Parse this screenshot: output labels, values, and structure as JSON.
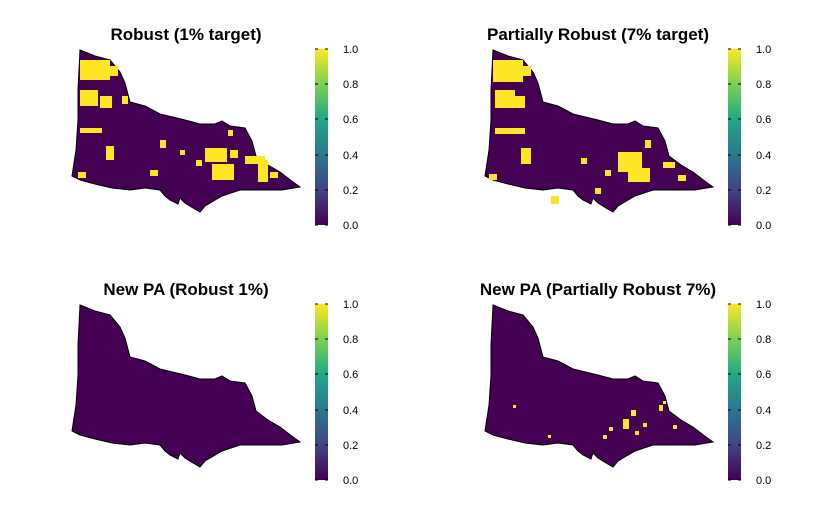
{
  "panels": [
    {
      "title": "Robust (1% target)",
      "scale_max": "1.0",
      "selection": "robust_1"
    },
    {
      "title": "Partially Robust (7% target)",
      "scale_max": "1.0",
      "selection": "partial_7"
    },
    {
      "title": "New PA (Robust 1%)",
      "scale_max": "1.0",
      "selection": "new_pa_robust_1"
    },
    {
      "title": "New PA (Partially Robust 7%)",
      "scale_max": "1.0",
      "selection": "new_pa_partial_7"
    }
  ],
  "legend": {
    "ticks": [
      "0.0",
      "0.2",
      "0.4",
      "0.6",
      "0.8",
      "1.0"
    ],
    "colors": [
      "#440154",
      "#414487",
      "#2a788e",
      "#22a884",
      "#7ad151",
      "#fde725"
    ]
  },
  "map_colors": {
    "low": "#440154",
    "high": "#fde725"
  }
}
